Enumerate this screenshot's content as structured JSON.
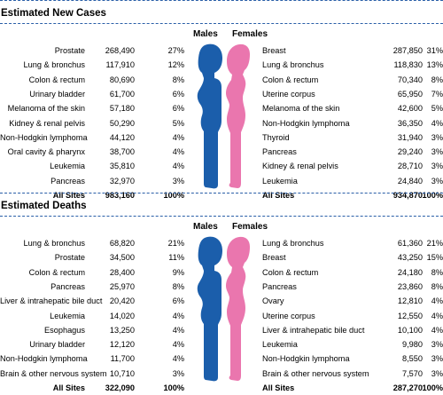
{
  "colors": {
    "male": "#1b5eab",
    "female": "#ea76ae",
    "rule": "#2a5fa8"
  },
  "labels": {
    "males": "Males",
    "females": "Females"
  },
  "chart_data": [
    {
      "type": "table",
      "title": "Estimated New Cases",
      "males": [
        {
          "site": "Prostate",
          "count": "268,490",
          "pct": "27%"
        },
        {
          "site": "Lung & bronchus",
          "count": "117,910",
          "pct": "12%"
        },
        {
          "site": "Colon & rectum",
          "count": "80,690",
          "pct": "8%"
        },
        {
          "site": "Urinary bladder",
          "count": "61,700",
          "pct": "6%"
        },
        {
          "site": "Melanoma of the skin",
          "count": "57,180",
          "pct": "6%"
        },
        {
          "site": "Kidney & renal pelvis",
          "count": "50,290",
          "pct": "5%"
        },
        {
          "site": "Non-Hodgkin lymphoma",
          "count": "44,120",
          "pct": "4%"
        },
        {
          "site": "Oral cavity & pharynx",
          "count": "38,700",
          "pct": "4%"
        },
        {
          "site": "Leukemia",
          "count": "35,810",
          "pct": "4%"
        },
        {
          "site": "Pancreas",
          "count": "32,970",
          "pct": "3%"
        }
      ],
      "males_total": {
        "site": "All Sites",
        "count": "983,160",
        "pct": "100%"
      },
      "females": [
        {
          "site": "Breast",
          "count": "287,850",
          "pct": "31%"
        },
        {
          "site": "Lung & bronchus",
          "count": "118,830",
          "pct": "13%"
        },
        {
          "site": "Colon & rectum",
          "count": "70,340",
          "pct": "8%"
        },
        {
          "site": "Uterine corpus",
          "count": "65,950",
          "pct": "7%"
        },
        {
          "site": "Melanoma of the skin",
          "count": "42,600",
          "pct": "5%"
        },
        {
          "site": "Non-Hodgkin lymphoma",
          "count": "36,350",
          "pct": "4%"
        },
        {
          "site": "Thyroid",
          "count": "31,940",
          "pct": "3%"
        },
        {
          "site": "Pancreas",
          "count": "29,240",
          "pct": "3%"
        },
        {
          "site": "Kidney & renal pelvis",
          "count": "28,710",
          "pct": "3%"
        },
        {
          "site": "Leukemia",
          "count": "24,840",
          "pct": "3%"
        }
      ],
      "females_total": {
        "site": "All Sites",
        "count": "934,870",
        "pct": "100%"
      }
    },
    {
      "type": "table",
      "title": "Estimated Deaths",
      "males": [
        {
          "site": "Lung & bronchus",
          "count": "68,820",
          "pct": "21%"
        },
        {
          "site": "Prostate",
          "count": "34,500",
          "pct": "11%"
        },
        {
          "site": "Colon & rectum",
          "count": "28,400",
          "pct": "9%"
        },
        {
          "site": "Pancreas",
          "count": "25,970",
          "pct": "8%"
        },
        {
          "site": "Liver & intrahepatic bile duct",
          "count": "20,420",
          "pct": "6%"
        },
        {
          "site": "Leukemia",
          "count": "14,020",
          "pct": "4%"
        },
        {
          "site": "Esophagus",
          "count": "13,250",
          "pct": "4%"
        },
        {
          "site": "Urinary bladder",
          "count": "12,120",
          "pct": "4%"
        },
        {
          "site": "Non-Hodgkin lymphoma",
          "count": "11,700",
          "pct": "4%"
        },
        {
          "site": "Brain & other nervous system",
          "count": "10,710",
          "pct": "3%"
        }
      ],
      "males_total": {
        "site": "All Sites",
        "count": "322,090",
        "pct": "100%"
      },
      "females": [
        {
          "site": "Lung & bronchus",
          "count": "61,360",
          "pct": "21%"
        },
        {
          "site": "Breast",
          "count": "43,250",
          "pct": "15%"
        },
        {
          "site": "Colon & rectum",
          "count": "24,180",
          "pct": "8%"
        },
        {
          "site": "Pancreas",
          "count": "23,860",
          "pct": "8%"
        },
        {
          "site": "Ovary",
          "count": "12,810",
          "pct": "4%"
        },
        {
          "site": "Uterine corpus",
          "count": "12,550",
          "pct": "4%"
        },
        {
          "site": "Liver & intrahepatic bile duct",
          "count": "10,100",
          "pct": "4%"
        },
        {
          "site": "Leukemia",
          "count": "9,980",
          "pct": "3%"
        },
        {
          "site": "Non-Hodgkin lymphoma",
          "count": "8,550",
          "pct": "3%"
        },
        {
          "site": "Brain & other nervous system",
          "count": "7,570",
          "pct": "3%"
        }
      ],
      "females_total": {
        "site": "All Sites",
        "count": "287,270",
        "pct": "100%"
      }
    }
  ]
}
